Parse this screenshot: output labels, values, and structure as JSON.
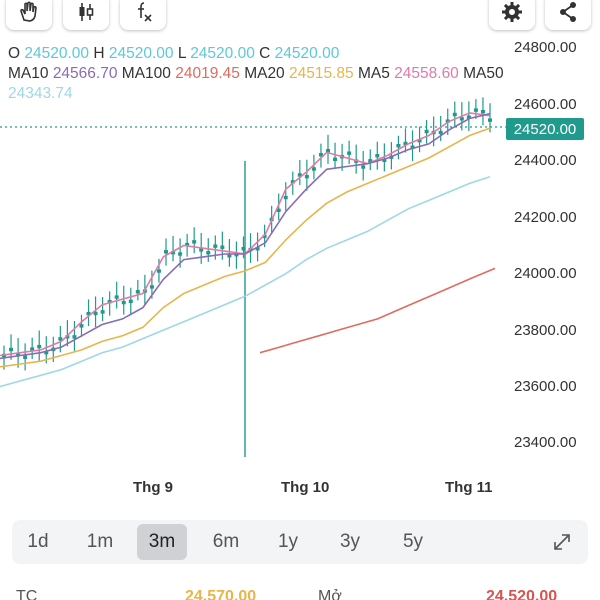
{
  "toolbar": {
    "buttons": [
      "hand-icon",
      "candlestick-icon",
      "function-icon",
      "gear-icon",
      "share-icon"
    ]
  },
  "ohlc": {
    "o_label": "O",
    "o_value": "24520.00",
    "h_label": "H",
    "h_value": "24520.00",
    "l_label": "L",
    "l_value": "24520.00",
    "c_label": "C",
    "c_value": "24520.00"
  },
  "ma": {
    "ma10_label": "MA10",
    "ma10_value": "24566.70",
    "ma10_color": "#8a6bb5",
    "ma100_label": "MA100",
    "ma100_value": "24019.45",
    "ma100_color": "#e06b5e",
    "ma20_label": "MA20",
    "ma20_value": "24515.85",
    "ma20_color": "#e8b54a",
    "ma5_label": "MA5",
    "ma5_value": "24558.60",
    "ma5_color": "#e07aa8",
    "ma50_label": "MA50",
    "ma50_value": "24343.74",
    "ma50_color": "#9ed8e8"
  },
  "colors": {
    "value_teal": "#5cc8d8",
    "candle_green": "#1f9a8c",
    "price_tag_bg": "#1f9a8c"
  },
  "current_price": "24520.00",
  "chart_data": {
    "type": "line",
    "y_ticks": [
      "24800.00",
      "24600.00",
      "24400.00",
      "24200.00",
      "24000.00",
      "23800.00",
      "23600.00",
      "23400.00"
    ],
    "x_ticks": [
      "Thg 9",
      "Thg 10",
      "Thg 11"
    ],
    "ylim": [
      23400,
      24800
    ],
    "current_price": 24520,
    "grid": false,
    "series": [
      {
        "name": "MA5",
        "color": "#e07aa8",
        "values": [
          23710,
          23720,
          23730,
          23760,
          23830,
          23890,
          23910,
          23930,
          24060,
          24100,
          24090,
          24080,
          24070,
          24140,
          24300,
          24360,
          24430,
          24410,
          24390,
          24420,
          24460,
          24490,
          24540,
          24570,
          24560
        ]
      },
      {
        "name": "MA10",
        "color": "#8a6bb5",
        "values": [
          23700,
          23710,
          23720,
          23740,
          23780,
          23820,
          23840,
          23880,
          23980,
          24050,
          24060,
          24070,
          24070,
          24110,
          24220,
          24300,
          24370,
          24380,
          24390,
          24410,
          24440,
          24460,
          24510,
          24550,
          24567
        ]
      },
      {
        "name": "MA20",
        "color": "#e8b54a",
        "values": [
          23670,
          23680,
          23690,
          23710,
          23730,
          23760,
          23780,
          23810,
          23880,
          23930,
          23960,
          23990,
          24010,
          24040,
          24120,
          24190,
          24250,
          24290,
          24320,
          24350,
          24380,
          24410,
          24450,
          24490,
          24516
        ]
      },
      {
        "name": "MA50",
        "color": "#9ed8e8",
        "values": [
          23600,
          23620,
          23640,
          23660,
          23690,
          23720,
          23740,
          23770,
          23800,
          23830,
          23860,
          23890,
          23920,
          23960,
          24000,
          24050,
          24090,
          24120,
          24150,
          24190,
          24230,
          24260,
          24290,
          24320,
          24344
        ]
      },
      {
        "name": "MA100",
        "color": "#e06b5e",
        "start_index": 12,
        "values": [
          23720,
          23740,
          23760,
          23780,
          23800,
          23820,
          23840,
          23870,
          23900,
          23930,
          23960,
          23990,
          24019
        ]
      }
    ]
  },
  "periods": {
    "items": [
      "1d",
      "1m",
      "3m",
      "6m",
      "1y",
      "3y",
      "5y"
    ],
    "active": "3m"
  },
  "bottom": {
    "left_label": "TC",
    "mid_value": "24,570.00",
    "mid_label": "Mở",
    "right_value": "24,520.00"
  }
}
